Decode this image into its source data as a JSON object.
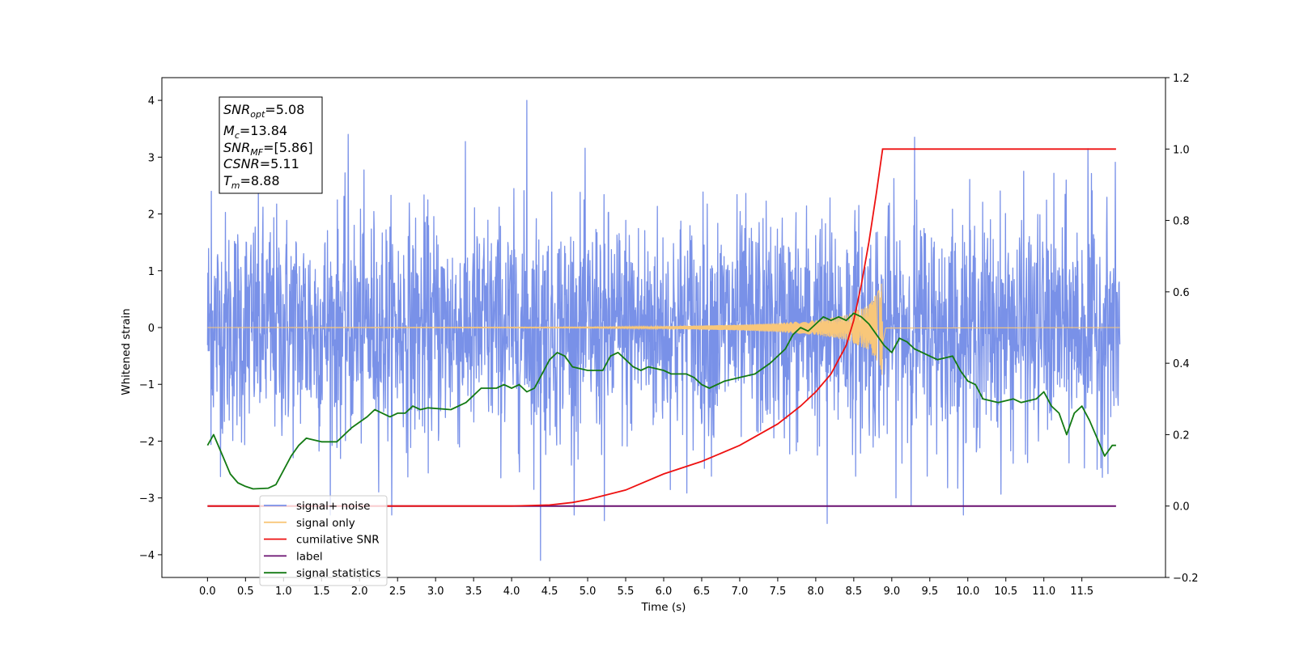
{
  "chart_data": {
    "type": "line",
    "xlabel": "Time (s)",
    "ylabel_left": "Whitened strain",
    "ylabel_right": "",
    "xlim": [
      -0.6,
      12.6
    ],
    "ylim_left": [
      -4.4,
      4.4
    ],
    "ylim_right": [
      -0.2,
      1.2
    ],
    "x_ticks": [
      0.0,
      0.5,
      1.0,
      1.5,
      2.0,
      2.5,
      3.0,
      3.5,
      4.0,
      4.5,
      5.0,
      5.5,
      6.0,
      6.5,
      7.0,
      7.5,
      8.0,
      8.5,
      9.0,
      9.5,
      10.0,
      10.5,
      11.0,
      11.5
    ],
    "x_tick_labels": [
      "0.0",
      "0.5",
      "1.0",
      "1.5",
      "2.0",
      "2.5",
      "3.0",
      "3.5",
      "4.0",
      "4.5",
      "5.0",
      "5.5",
      "6.0",
      "6.5",
      "7.0",
      "7.5",
      "8.0",
      "8.5",
      "9.0",
      "9.5",
      "10.0",
      "10.5",
      "11.0",
      "11.5"
    ],
    "y_left_ticks": [
      -4,
      -3,
      -2,
      -1,
      0,
      1,
      2,
      3,
      4
    ],
    "y_left_tick_labels": [
      "−4",
      "−3",
      "−2",
      "−1",
      "0",
      "1",
      "2",
      "3",
      "4"
    ],
    "y_right_ticks": [
      -0.2,
      0.0,
      0.2,
      0.4,
      0.6,
      0.8,
      1.0,
      1.2
    ],
    "y_right_tick_labels": [
      "−0.2",
      "0.0",
      "0.2",
      "0.4",
      "0.6",
      "0.8",
      "1.0",
      "1.2"
    ],
    "annotation": {
      "snr_opt": "=5.08",
      "mc": "=13.84",
      "snr_mf": "=[5.86]",
      "csnr": "=5.11",
      "tm": "=8.88"
    },
    "legend": {
      "placement": "lower-left",
      "entries": [
        {
          "label": "signal+ noise",
          "color": "#7991e8"
        },
        {
          "label": "signal only",
          "color": "#f8c77a"
        },
        {
          "label": "cumilative SNR",
          "color": "#ee1111"
        },
        {
          "label": "label",
          "color": "#6a1070"
        },
        {
          "label": "signal statistics",
          "color": "#137a13"
        }
      ]
    },
    "series": [
      {
        "name": "signal+ noise",
        "axis": "left",
        "color": "#7991e8",
        "x_range": [
          0.0,
          12.0
        ],
        "amplitude_std": 1.0,
        "notable_peaks": [
          [
            0.05,
            2.4
          ],
          [
            1.85,
            3.4
          ],
          [
            4.2,
            4.0
          ],
          [
            4.38,
            -4.1
          ],
          [
            5.22,
            -3.4
          ],
          [
            8.15,
            -3.45
          ],
          [
            9.3,
            3.35
          ],
          [
            11.58,
            3.15
          ]
        ]
      },
      {
        "name": "signal only",
        "axis": "left",
        "color": "#f8c77a",
        "merger_time": 8.88,
        "peak_amplitude": 0.9,
        "envelope": [
          [
            0.0,
            0.0
          ],
          [
            5.0,
            0.01
          ],
          [
            6.0,
            0.02
          ],
          [
            7.0,
            0.05
          ],
          [
            7.5,
            0.08
          ],
          [
            8.0,
            0.13
          ],
          [
            8.4,
            0.22
          ],
          [
            8.7,
            0.4
          ],
          [
            8.85,
            0.7
          ],
          [
            8.88,
            0.9
          ],
          [
            8.92,
            0.03
          ],
          [
            12.0,
            0.0
          ]
        ]
      },
      {
        "name": "cumilative SNR",
        "axis": "right",
        "color": "#ee1111",
        "points": [
          [
            0.0,
            0.0
          ],
          [
            4.0,
            0.0
          ],
          [
            4.5,
            0.003
          ],
          [
            4.8,
            0.01
          ],
          [
            5.0,
            0.018
          ],
          [
            5.5,
            0.045
          ],
          [
            6.0,
            0.09
          ],
          [
            6.5,
            0.125
          ],
          [
            7.0,
            0.17
          ],
          [
            7.5,
            0.23
          ],
          [
            7.8,
            0.28
          ],
          [
            8.0,
            0.32
          ],
          [
            8.2,
            0.37
          ],
          [
            8.4,
            0.45
          ],
          [
            8.5,
            0.52
          ],
          [
            8.6,
            0.62
          ],
          [
            8.7,
            0.74
          ],
          [
            8.8,
            0.88
          ],
          [
            8.88,
            1.0
          ],
          [
            11.95,
            1.0
          ]
        ]
      },
      {
        "name": "label",
        "axis": "right",
        "color": "#6a1070",
        "points": [
          [
            0.0,
            0.0
          ],
          [
            11.95,
            0.0
          ]
        ]
      },
      {
        "name": "signal statistics",
        "axis": "right",
        "color": "#137a13",
        "points": [
          [
            0.0,
            0.17
          ],
          [
            0.08,
            0.2
          ],
          [
            0.2,
            0.14
          ],
          [
            0.3,
            0.09
          ],
          [
            0.4,
            0.065
          ],
          [
            0.5,
            0.055
          ],
          [
            0.6,
            0.048
          ],
          [
            0.8,
            0.05
          ],
          [
            0.9,
            0.06
          ],
          [
            1.0,
            0.1
          ],
          [
            1.1,
            0.14
          ],
          [
            1.2,
            0.17
          ],
          [
            1.3,
            0.19
          ],
          [
            1.5,
            0.18
          ],
          [
            1.7,
            0.18
          ],
          [
            1.9,
            0.22
          ],
          [
            2.1,
            0.25
          ],
          [
            2.2,
            0.27
          ],
          [
            2.4,
            0.25
          ],
          [
            2.5,
            0.26
          ],
          [
            2.6,
            0.26
          ],
          [
            2.7,
            0.28
          ],
          [
            2.8,
            0.27
          ],
          [
            2.9,
            0.275
          ],
          [
            3.2,
            0.27
          ],
          [
            3.4,
            0.29
          ],
          [
            3.6,
            0.33
          ],
          [
            3.8,
            0.33
          ],
          [
            3.9,
            0.34
          ],
          [
            4.0,
            0.33
          ],
          [
            4.1,
            0.34
          ],
          [
            4.2,
            0.32
          ],
          [
            4.3,
            0.33
          ],
          [
            4.4,
            0.37
          ],
          [
            4.5,
            0.41
          ],
          [
            4.6,
            0.43
          ],
          [
            4.7,
            0.42
          ],
          [
            4.8,
            0.39
          ],
          [
            5.0,
            0.38
          ],
          [
            5.2,
            0.38
          ],
          [
            5.3,
            0.42
          ],
          [
            5.4,
            0.43
          ],
          [
            5.5,
            0.41
          ],
          [
            5.6,
            0.39
          ],
          [
            5.7,
            0.38
          ],
          [
            5.8,
            0.39
          ],
          [
            6.0,
            0.38
          ],
          [
            6.1,
            0.37
          ],
          [
            6.3,
            0.37
          ],
          [
            6.4,
            0.36
          ],
          [
            6.5,
            0.34
          ],
          [
            6.6,
            0.33
          ],
          [
            6.8,
            0.35
          ],
          [
            7.0,
            0.36
          ],
          [
            7.2,
            0.37
          ],
          [
            7.4,
            0.4
          ],
          [
            7.6,
            0.44
          ],
          [
            7.7,
            0.48
          ],
          [
            7.8,
            0.5
          ],
          [
            7.9,
            0.49
          ],
          [
            8.0,
            0.51
          ],
          [
            8.1,
            0.53
          ],
          [
            8.2,
            0.52
          ],
          [
            8.3,
            0.53
          ],
          [
            8.4,
            0.52
          ],
          [
            8.5,
            0.54
          ],
          [
            8.6,
            0.53
          ],
          [
            8.7,
            0.51
          ],
          [
            8.8,
            0.48
          ],
          [
            8.9,
            0.45
          ],
          [
            9.0,
            0.43
          ],
          [
            9.1,
            0.47
          ],
          [
            9.2,
            0.46
          ],
          [
            9.3,
            0.44
          ],
          [
            9.5,
            0.42
          ],
          [
            9.6,
            0.41
          ],
          [
            9.8,
            0.42
          ],
          [
            9.9,
            0.38
          ],
          [
            10.0,
            0.35
          ],
          [
            10.1,
            0.34
          ],
          [
            10.2,
            0.3
          ],
          [
            10.4,
            0.29
          ],
          [
            10.6,
            0.3
          ],
          [
            10.7,
            0.29
          ],
          [
            10.9,
            0.3
          ],
          [
            11.0,
            0.32
          ],
          [
            11.1,
            0.28
          ],
          [
            11.2,
            0.26
          ],
          [
            11.3,
            0.2
          ],
          [
            11.4,
            0.26
          ],
          [
            11.5,
            0.28
          ],
          [
            11.6,
            0.24
          ],
          [
            11.7,
            0.19
          ],
          [
            11.8,
            0.14
          ],
          [
            11.9,
            0.17
          ],
          [
            11.95,
            0.17
          ]
        ]
      }
    ]
  }
}
